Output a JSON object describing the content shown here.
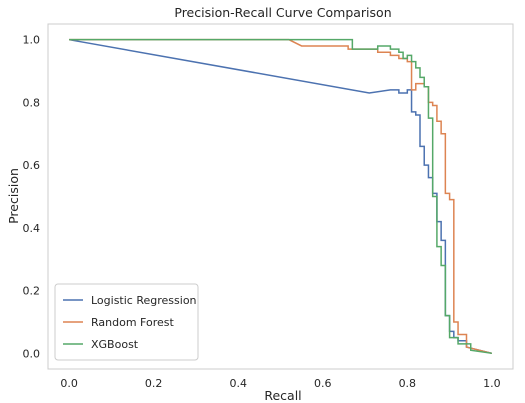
{
  "chart_data": {
    "type": "line",
    "title": "Precision-Recall Curve Comparison",
    "xlabel": "Recall",
    "ylabel": "Precision",
    "xlim": [
      -0.05,
      1.05
    ],
    "ylim": [
      -0.05,
      1.05
    ],
    "xticks": [
      "0.0",
      "0.2",
      "0.4",
      "0.6",
      "0.8",
      "1.0"
    ],
    "yticks": [
      "0.0",
      "0.2",
      "0.4",
      "0.6",
      "0.8",
      "1.0"
    ],
    "grid": false,
    "legend_position": "lower-left",
    "series": [
      {
        "name": "Logistic Regression",
        "color": "#4c72b0",
        "points": [
          [
            0.0,
            1.0
          ],
          [
            0.71,
            0.83
          ],
          [
            0.76,
            0.84
          ],
          [
            0.77,
            0.84
          ],
          [
            0.78,
            0.84
          ],
          [
            0.78,
            0.83
          ],
          [
            0.8,
            0.83
          ],
          [
            0.8,
            0.84
          ],
          [
            0.81,
            0.84
          ],
          [
            0.81,
            0.77
          ],
          [
            0.82,
            0.77
          ],
          [
            0.82,
            0.76
          ],
          [
            0.83,
            0.76
          ],
          [
            0.83,
            0.66
          ],
          [
            0.84,
            0.66
          ],
          [
            0.84,
            0.6
          ],
          [
            0.85,
            0.6
          ],
          [
            0.85,
            0.56
          ],
          [
            0.86,
            0.56
          ],
          [
            0.86,
            0.51
          ],
          [
            0.87,
            0.51
          ],
          [
            0.87,
            0.42
          ],
          [
            0.88,
            0.42
          ],
          [
            0.88,
            0.36
          ],
          [
            0.89,
            0.36
          ],
          [
            0.89,
            0.12
          ],
          [
            0.9,
            0.12
          ],
          [
            0.9,
            0.07
          ],
          [
            0.91,
            0.07
          ],
          [
            0.91,
            0.05
          ],
          [
            0.92,
            0.05
          ],
          [
            0.92,
            0.04
          ],
          [
            0.94,
            0.04
          ],
          [
            0.94,
            0.02
          ],
          [
            1.0,
            0.0
          ]
        ]
      },
      {
        "name": "Random Forest",
        "color": "#dd8452",
        "points": [
          [
            0.0,
            1.0
          ],
          [
            0.52,
            1.0
          ],
          [
            0.55,
            0.98
          ],
          [
            0.66,
            0.98
          ],
          [
            0.66,
            0.97
          ],
          [
            0.73,
            0.97
          ],
          [
            0.73,
            0.96
          ],
          [
            0.76,
            0.96
          ],
          [
            0.76,
            0.95
          ],
          [
            0.78,
            0.95
          ],
          [
            0.78,
            0.94
          ],
          [
            0.8,
            0.94
          ],
          [
            0.8,
            0.93
          ],
          [
            0.81,
            0.93
          ],
          [
            0.81,
            0.84
          ],
          [
            0.82,
            0.84
          ],
          [
            0.82,
            0.86
          ],
          [
            0.84,
            0.86
          ],
          [
            0.84,
            0.85
          ],
          [
            0.85,
            0.85
          ],
          [
            0.85,
            0.8
          ],
          [
            0.86,
            0.8
          ],
          [
            0.86,
            0.79
          ],
          [
            0.87,
            0.79
          ],
          [
            0.87,
            0.74
          ],
          [
            0.88,
            0.74
          ],
          [
            0.88,
            0.7
          ],
          [
            0.89,
            0.7
          ],
          [
            0.89,
            0.51
          ],
          [
            0.9,
            0.51
          ],
          [
            0.9,
            0.49
          ],
          [
            0.91,
            0.49
          ],
          [
            0.91,
            0.1
          ],
          [
            0.92,
            0.1
          ],
          [
            0.92,
            0.06
          ],
          [
            0.94,
            0.06
          ],
          [
            0.94,
            0.02
          ],
          [
            1.0,
            0.0
          ]
        ]
      },
      {
        "name": "XGBoost",
        "color": "#55a868",
        "points": [
          [
            0.0,
            1.0
          ],
          [
            0.67,
            1.0
          ],
          [
            0.67,
            0.97
          ],
          [
            0.73,
            0.97
          ],
          [
            0.73,
            0.98
          ],
          [
            0.76,
            0.98
          ],
          [
            0.76,
            0.97
          ],
          [
            0.78,
            0.97
          ],
          [
            0.78,
            0.96
          ],
          [
            0.79,
            0.96
          ],
          [
            0.79,
            0.94
          ],
          [
            0.8,
            0.94
          ],
          [
            0.8,
            0.95
          ],
          [
            0.81,
            0.95
          ],
          [
            0.81,
            0.93
          ],
          [
            0.82,
            0.93
          ],
          [
            0.82,
            0.91
          ],
          [
            0.83,
            0.91
          ],
          [
            0.83,
            0.88
          ],
          [
            0.84,
            0.88
          ],
          [
            0.84,
            0.85
          ],
          [
            0.85,
            0.85
          ],
          [
            0.85,
            0.75
          ],
          [
            0.86,
            0.75
          ],
          [
            0.86,
            0.5
          ],
          [
            0.87,
            0.5
          ],
          [
            0.87,
            0.34
          ],
          [
            0.88,
            0.34
          ],
          [
            0.88,
            0.28
          ],
          [
            0.89,
            0.28
          ],
          [
            0.89,
            0.12
          ],
          [
            0.9,
            0.12
          ],
          [
            0.9,
            0.05
          ],
          [
            0.92,
            0.05
          ],
          [
            0.92,
            0.03
          ],
          [
            0.95,
            0.03
          ],
          [
            0.95,
            0.01
          ],
          [
            1.0,
            0.0
          ]
        ]
      }
    ]
  }
}
